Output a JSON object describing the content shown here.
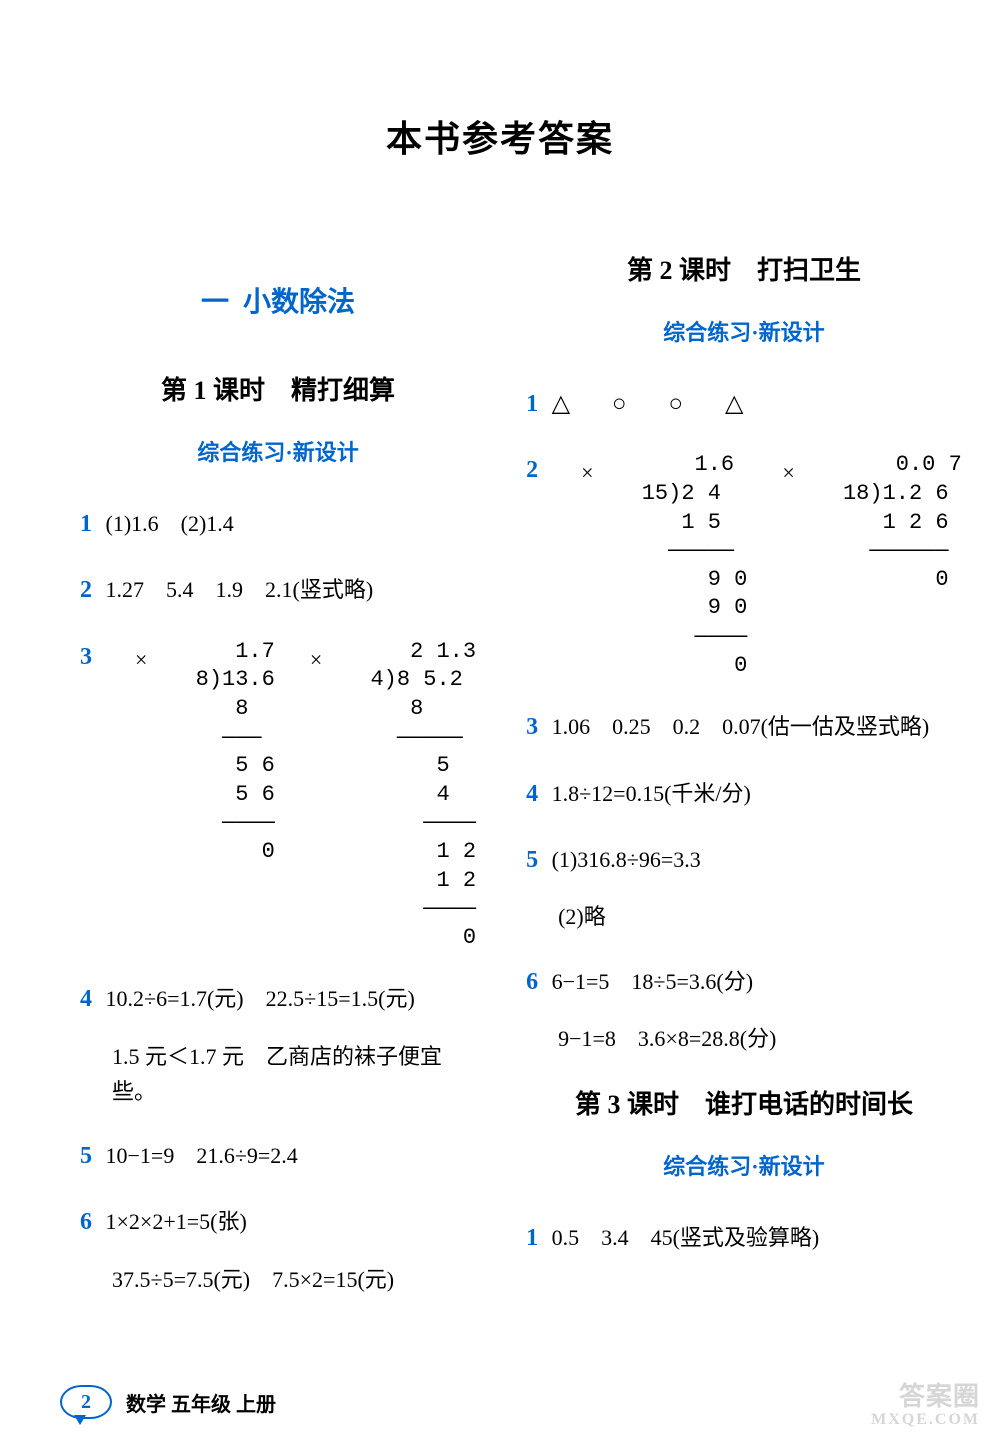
{
  "page_title": "本书参考答案",
  "footer": {
    "page_number": "2",
    "text": "数学 五年级 上册"
  },
  "watermark": {
    "line1": "答案圈",
    "line2": "MXQE.COM"
  },
  "colors": {
    "accent": "#0066cc",
    "text": "#000000",
    "bg": "#ffffff",
    "divider": "#0066cc"
  },
  "left": {
    "unit_dash": "一",
    "unit_title": "小数除法",
    "lesson": "第 1 课时　精打细算",
    "subsection": "综合练习·新设计",
    "q1": {
      "num": "1",
      "text": "(1)1.6　(2)1.4"
    },
    "q2": {
      "num": "2",
      "text": "1.27　5.4　1.9　2.1(竖式略)"
    },
    "q3": {
      "num": "3",
      "ld1": "    1.7\n 8)13.6\n    8  \n   ———\n    5 6\n    5 6\n   ————\n      0",
      "ld2": "    2 1.3\n 4)8 5.2\n    8    \n   —————\n      5  \n      4  \n     ————\n      1 2\n      1 2\n     ————\n        0"
    },
    "q4": {
      "num": "4",
      "line1": "10.2÷6=1.7(元)　22.5÷15=1.5(元)",
      "line2": "1.5 元＜1.7 元　乙商店的袜子便宜些。"
    },
    "q5": {
      "num": "5",
      "text": "10−1=9　21.6÷9=2.4"
    },
    "q6": {
      "num": "6",
      "line1": "1×2×2+1=5(张)",
      "line2": "37.5÷5=7.5(元)　7.5×2=15(元)"
    }
  },
  "right": {
    "lesson2": "第 2 课时　打扫卫生",
    "subsection": "综合练习·新设计",
    "q1": {
      "num": "1",
      "shapes": "△ ○ ○ △"
    },
    "q2": {
      "num": "2",
      "ld1": "     1.6\n 15)2 4  \n    1 5  \n   —————\n      9 0\n      9 0\n     ————\n        0",
      "ld2": "     0.0 7\n 18)1.2 6\n    1 2 6\n   ——————\n        0"
    },
    "q3": {
      "num": "3",
      "text": "1.06　0.25　0.2　0.07(估一估及竖式略)"
    },
    "q4": {
      "num": "4",
      "text": "1.8÷12=0.15(千米/分)"
    },
    "q5": {
      "num": "5",
      "line1": "(1)316.8÷96=3.3",
      "line2": "(2)略"
    },
    "q6": {
      "num": "6",
      "line1": "6−1=5　18÷5=3.6(分)",
      "line2": "9−1=8　3.6×8=28.8(分)"
    },
    "lesson3": "第 3 课时　谁打电话的时间长",
    "subsection3": "综合练习·新设计",
    "q1b": {
      "num": "1",
      "text": "0.5　3.4　45(竖式及验算略)"
    }
  }
}
